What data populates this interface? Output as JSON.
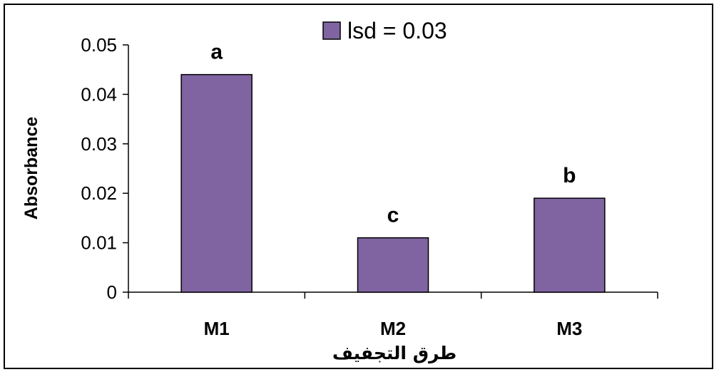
{
  "chart_data": {
    "type": "bar",
    "categories": [
      "M1",
      "M2",
      "M3"
    ],
    "values": [
      0.044,
      0.011,
      0.019
    ],
    "data_labels": [
      "a",
      "c",
      "b"
    ],
    "title": "",
    "xlabel": "طرق التجفيف",
    "ylabel": "Absorbance",
    "ylim": [
      0,
      0.05
    ],
    "yticks": [
      "0",
      "0.01",
      "0.02",
      "0.03",
      "0.04",
      "0.05"
    ],
    "legend": {
      "label": "lsd = 0.03",
      "placement": "top-center"
    },
    "grid": false,
    "colors": {
      "bar": "#8064A2",
      "bar_outline": "#000000"
    }
  }
}
